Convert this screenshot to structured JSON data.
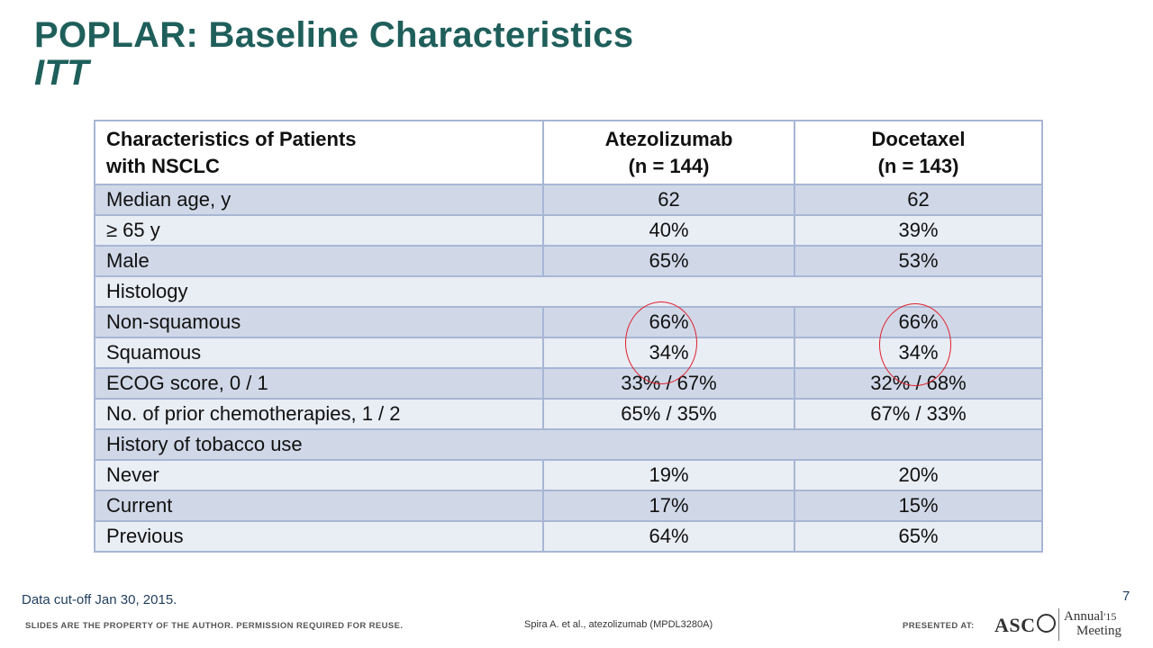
{
  "title": {
    "main": "POPLAR: Baseline Characteristics",
    "sub": "ITT"
  },
  "table": {
    "headers": [
      "Characteristics of Patients\nwith NSCLC",
      "Atezolizumab\n(n = 144)",
      "Docetaxel\n(n = 143)"
    ],
    "rows": [
      {
        "label": "Median age, y",
        "atezolizumab": "62",
        "docetaxel": "62"
      },
      {
        "label": "≥ 65 y",
        "atezolizumab": "40%",
        "docetaxel": "39%"
      },
      {
        "label": "Male",
        "atezolizumab": "65%",
        "docetaxel": "53%"
      },
      {
        "label": "Histology",
        "atezolizumab": "",
        "docetaxel": ""
      },
      {
        "label": "Non-squamous",
        "atezolizumab": "66%",
        "docetaxel": "66%"
      },
      {
        "label": "Squamous",
        "atezolizumab": "34%",
        "docetaxel": "34%"
      },
      {
        "label": "ECOG score, 0 / 1",
        "atezolizumab": "33% / 67%",
        "docetaxel": "32% / 68%"
      },
      {
        "label": "No. of prior chemotherapies, 1 / 2",
        "atezolizumab": "65% / 35%",
        "docetaxel": "67% / 33%"
      },
      {
        "label": "History of tobacco use",
        "atezolizumab": "",
        "docetaxel": ""
      },
      {
        "label": "Never",
        "atezolizumab": "19%",
        "docetaxel": "20%"
      },
      {
        "label": "Current",
        "atezolizumab": "17%",
        "docetaxel": "15%"
      },
      {
        "label": "Previous",
        "atezolizumab": "64%",
        "docetaxel": "65%"
      }
    ]
  },
  "footer": {
    "data_cutoff": "Data cut-off Jan 30, 2015.",
    "page_number": "7",
    "disclaimer": "SLIDES ARE THE PROPERTY OF THE AUTHOR. PERMISSION REQUIRED FOR REUSE.",
    "citation": "Spira A. et al., atezolizumab (MPDL3280A)",
    "presented_at": "PRESENTED AT:",
    "logo_text": "ASC",
    "annual": "Annual",
    "year": "'15",
    "meeting": "Meeting"
  },
  "colors": {
    "title": "#1f5f5b",
    "band_row": "#d0d8e8",
    "plain_row": "#e9edf4",
    "border": "#a8b6d4",
    "highlight_circle": "#e0202a"
  }
}
